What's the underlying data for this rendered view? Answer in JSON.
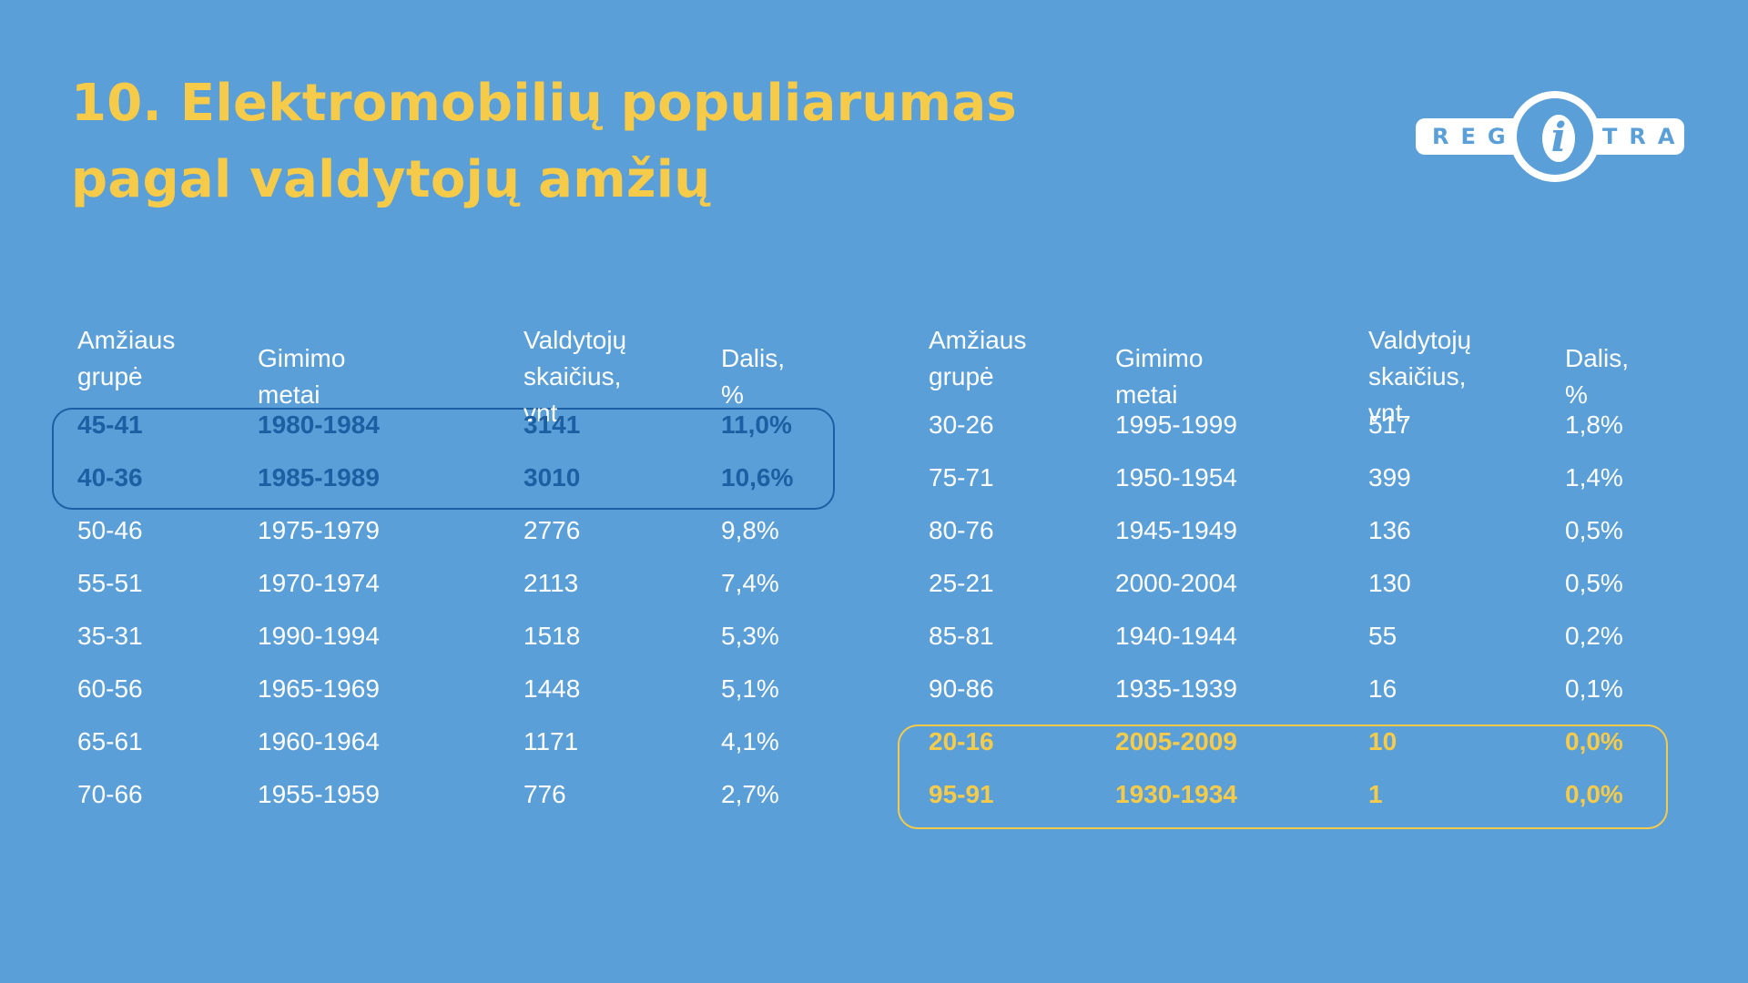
{
  "title": {
    "line1": "10. Elektromobilių populiarumas",
    "line2": "pagal valdytojų amžių"
  },
  "logo": {
    "left_text": "REG",
    "icon_letter": "i",
    "right_text": "TRA"
  },
  "headers": {
    "age_line1": "Amžiaus",
    "age_line2": "grupė",
    "birth": "Gimimo metai",
    "count_line1": "Valdytojų",
    "count_line2": "skaičius, vnt.",
    "share": "Dalis, %"
  },
  "left_rows": [
    {
      "age": "45-41",
      "birth": "1980-1984",
      "count": "3141",
      "share": "11,0%"
    },
    {
      "age": "40-36",
      "birth": "1985-1989",
      "count": "3010",
      "share": "10,6%"
    },
    {
      "age": "50-46",
      "birth": "1975-1979",
      "count": "2776",
      "share": "9,8%"
    },
    {
      "age": "55-51",
      "birth": "1970-1974",
      "count": "2113",
      "share": "7,4%"
    },
    {
      "age": "35-31",
      "birth": "1990-1994",
      "count": "1518",
      "share": "5,3%"
    },
    {
      "age": "60-56",
      "birth": "1965-1969",
      "count": "1448",
      "share": "5,1%"
    },
    {
      "age": "65-61",
      "birth": "1960-1964",
      "count": "1171",
      "share": "4,1%"
    },
    {
      "age": "70-66",
      "birth": "1955-1959",
      "count": "776",
      "share": "2,7%"
    }
  ],
  "right_rows": [
    {
      "age": "30-26",
      "birth": "1995-1999",
      "count": "517",
      "share": "1,8%"
    },
    {
      "age": "75-71",
      "birth": "1950-1954",
      "count": "399",
      "share": "1,4%"
    },
    {
      "age": "80-76",
      "birth": "1945-1949",
      "count": "136",
      "share": "0,5%"
    },
    {
      "age": "25-21",
      "birth": "2000-2004",
      "count": "130",
      "share": "0,5%"
    },
    {
      "age": "85-81",
      "birth": "1940-1944",
      "count": "55",
      "share": "0,2%"
    },
    {
      "age": "90-86",
      "birth": "1935-1939",
      "count": "16",
      "share": "0,1%"
    },
    {
      "age": "20-16",
      "birth": "2005-2009",
      "count": "10",
      "share": "0,0%"
    },
    {
      "age": "95-91",
      "birth": "1930-1934",
      "count": "1",
      "share": "0,0%"
    }
  ],
  "colors": {
    "background": "#5b9fd8",
    "title": "#f6cb4a",
    "highlight_blue": "#1d5fa3",
    "highlight_yellow": "#f6cb4a",
    "text": "#ffffff"
  }
}
